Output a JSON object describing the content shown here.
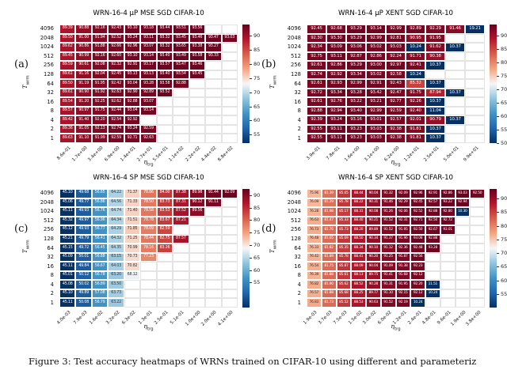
{
  "caption": "Figure 3: Test accuracy heatmaps of WRNs trained on CIFAR-10 using different and parameteriz",
  "shared": {
    "ylabel_base": "T",
    "ylabel_sub": "wrm",
    "xlabel_base": "η",
    "xlabel_sub": "trg",
    "row_labels": [
      "4096",
      "2048",
      "1024",
      "512",
      "256",
      "128",
      "64",
      "32",
      "16",
      "8",
      "4",
      "2",
      "1"
    ],
    "colormap": {
      "low": "#053061",
      "mid": "#f7f7f7",
      "high": "#67001f"
    }
  },
  "chart_data": [
    {
      "type": "heatmap",
      "id": "a",
      "letter": "(a)",
      "title": "WRN-16-4 μP MSE SGD CIFAR-10",
      "y_ticklabels": [
        "4096",
        "2048",
        "1024",
        "512",
        "256",
        "128",
        "64",
        "32",
        "16",
        "8",
        "4",
        "2",
        "1"
      ],
      "x_ticklabels": [
        "8.6e-01",
        "1.7e+00",
        "3.4e+00",
        "6.9e+00",
        "1.4e+01",
        "2.7e+01",
        "5.5e+01",
        "1.1e+02",
        "2.2e+02",
        "4.4e+02",
        "8.8e+02"
      ],
      "vmin": 52,
      "vmax": 94,
      "colorbar_ticks": [
        90,
        85,
        80,
        75,
        70,
        65,
        60,
        55
      ],
      "values": [
        [
          89.39,
          90.88,
          92.16,
          92.43,
          93.1,
          93.18,
          93.44,
          93.51,
          93.56,
          null,
          null
        ],
        [
          89.5,
          91.0,
          91.94,
          92.52,
          93.24,
          93.11,
          93.32,
          93.45,
          93.46,
          93.47,
          93.03
        ],
        [
          89.62,
          90.86,
          91.88,
          92.66,
          92.96,
          93.07,
          93.32,
          93.65,
          93.38,
          93.27,
          null
        ],
        [
          89.45,
          90.99,
          92.16,
          92.6,
          93.1,
          93.14,
          93.4,
          93.49,
          93.58,
          93.33,
          null
        ],
        [
          89.59,
          90.61,
          92.08,
          92.32,
          92.91,
          93.17,
          93.57,
          93.47,
          93.46,
          null,
          null
        ],
        [
          89.61,
          91.16,
          92.04,
          92.45,
          93.13,
          93.13,
          93.4,
          93.54,
          93.45,
          null,
          null
        ],
        [
          89.5,
          91.19,
          91.95,
          92.42,
          93.04,
          93.28,
          93.58,
          92.88,
          null,
          null,
          null
        ],
        [
          89.61,
          90.9,
          91.92,
          92.63,
          92.9,
          92.89,
          93.52,
          null,
          null,
          null,
          null
        ],
        [
          89.54,
          91.2,
          92.25,
          92.62,
          92.88,
          93.07,
          null,
          null,
          null,
          null,
          null
        ],
        [
          89.57,
          90.97,
          91.75,
          92.44,
          93.04,
          93.14,
          null,
          null,
          null,
          null,
          null
        ],
        [
          89.42,
          91.4,
          92.2,
          92.54,
          92.92,
          null,
          null,
          null,
          null,
          null,
          null
        ],
        [
          89.36,
          91.05,
          92.13,
          92.74,
          93.24,
          92.59,
          null,
          null,
          null,
          null,
          null
        ],
        [
          89.63,
          91.1,
          91.99,
          92.59,
          92.71,
          92.63,
          null,
          null,
          null,
          null,
          null
        ]
      ]
    },
    {
      "type": "heatmap",
      "id": "b",
      "letter": "(b)",
      "title": "WRN-16-4 μP XENT SGD CIFAR-10",
      "y_ticklabels": [
        "4096",
        "2048",
        "1024",
        "512",
        "256",
        "128",
        "64",
        "32",
        "16",
        "8",
        "4",
        "2",
        "1"
      ],
      "x_ticklabels": [
        "3.9e-01",
        "7.8e-01",
        "1.6e+00",
        "3.1e+00",
        "6.2e+00",
        "1.2e+01",
        "2.5e+01",
        "5.0e+01",
        "9.9e+01"
      ],
      "vmin": 50,
      "vmax": 94,
      "colorbar_ticks": [
        90,
        85,
        80,
        75,
        70,
        65,
        60,
        55,
        50
      ],
      "values": [
        [
          92.45,
          92.68,
          93.29,
          93.14,
          92.99,
          92.89,
          92.29,
          91.46,
          19.21
        ],
        [
          92.3,
          93.3,
          93.29,
          92.99,
          92.81,
          90.95,
          91.95,
          null,
          null
        ],
        [
          92.34,
          93.09,
          93.06,
          93.02,
          93.03,
          10.24,
          91.62,
          10.37,
          null
        ],
        [
          92.75,
          93.11,
          92.87,
          92.86,
          92.24,
          91.71,
          90.38,
          null,
          null
        ],
        [
          92.61,
          92.86,
          93.29,
          93.0,
          92.97,
          92.41,
          10.37,
          null,
          null
        ],
        [
          92.74,
          92.92,
          93.34,
          93.02,
          92.58,
          10.24,
          null,
          null,
          null
        ],
        [
          92.61,
          92.93,
          92.99,
          92.91,
          92.43,
          85.32,
          10.37,
          null,
          null
        ],
        [
          92.72,
          93.34,
          93.28,
          93.42,
          92.47,
          91.75,
          87.94,
          10.37,
          null
        ],
        [
          92.61,
          92.76,
          93.22,
          93.21,
          92.77,
          92.26,
          10.37,
          null,
          null
        ],
        [
          92.88,
          92.94,
          93.4,
          92.99,
          92.59,
          92.4,
          11.04,
          null,
          null
        ],
        [
          92.39,
          93.24,
          93.16,
          93.01,
          92.57,
          92.01,
          90.79,
          10.37,
          null
        ],
        [
          92.55,
          93.11,
          93.23,
          93.03,
          92.38,
          91.81,
          10.37,
          null,
          null
        ],
        [
          92.55,
          93.11,
          93.23,
          93.03,
          92.38,
          91.81,
          10.37,
          null,
          null
        ]
      ]
    },
    {
      "type": "heatmap",
      "id": "c",
      "letter": "(c)",
      "title": "WRN-16-4 SP MSE SGD CIFAR-10",
      "y_ticklabels": [
        "4096",
        "2048",
        "1024",
        "512",
        "256",
        "128",
        "64",
        "32",
        "16",
        "8",
        "4",
        "2",
        "1"
      ],
      "x_ticklabels": [
        "4.0e-03",
        "7.9e-03",
        "1.6e-02",
        "3.2e-02",
        "6.3e-02",
        "1.3e-01",
        "2.5e-01",
        "5.1e-01",
        "1.0e+00",
        "2.0e+00",
        "4.1e+00"
      ],
      "vmin": 45,
      "vmax": 92.5,
      "colorbar_ticks": [
        90,
        85,
        80,
        75,
        70,
        65,
        60,
        55
      ],
      "values": [
        [
          45.1,
          49.68,
          56.65,
          64.22,
          71.37,
          78.86,
          84.0,
          87.38,
          89.98,
          91.44,
          92.09
        ],
        [
          45.06,
          49.77,
          56.86,
          64.56,
          71.33,
          78.5,
          83.73,
          87.31,
          90.12,
          91.11,
          null
        ],
        [
          45.11,
          49.93,
          56.76,
          64.74,
          71.4,
          78.58,
          83.53,
          87.52,
          89.56,
          null,
          null
        ],
        [
          45.32,
          49.97,
          56.96,
          64.34,
          71.51,
          78.78,
          83.67,
          87.21,
          null,
          null,
          null
        ],
        [
          45.12,
          49.93,
          56.77,
          64.29,
          71.85,
          78.09,
          82.59,
          null,
          null,
          null,
          null
        ],
        [
          45.21,
          49.79,
          56.41,
          64.32,
          71.25,
          78.44,
          82.75,
          87.57,
          null,
          null,
          null
        ],
        [
          45.15,
          49.72,
          56.45,
          64.35,
          70.99,
          78.16,
          83.26,
          null,
          null,
          null,
          null
        ],
        [
          45.09,
          50.01,
          56.88,
          63.15,
          70.73,
          77.23,
          null,
          null,
          null,
          null,
          null
        ],
        [
          45.11,
          49.84,
          56.67,
          64.03,
          70.82,
          null,
          null,
          null,
          null,
          null,
          null
        ],
        [
          45.01,
          50.12,
          56.78,
          63.2,
          68.12,
          null,
          null,
          null,
          null,
          null,
          null
        ],
        [
          45.08,
          50.02,
          56.89,
          63.5,
          null,
          null,
          null,
          null,
          null,
          null,
          null
        ],
        [
          45.1,
          49.89,
          57.08,
          63.73,
          null,
          null,
          null,
          null,
          null,
          null,
          null
        ],
        [
          45.11,
          50.08,
          56.79,
          63.22,
          null,
          null,
          null,
          null,
          null,
          null,
          null
        ]
      ]
    },
    {
      "type": "heatmap",
      "id": "d",
      "letter": "(d)",
      "title": "WRN-16-4 SP XENT SGD CIFAR-10",
      "y_ticklabels": [
        "4096",
        "2048",
        "1024",
        "512",
        "256",
        "128",
        "64",
        "32",
        "16",
        "8",
        "4",
        "2",
        "1"
      ],
      "x_ticklabels": [
        "1.9e-03",
        "3.7e-03",
        "7.5e-03",
        "1.5e-02",
        "3.0e-02",
        "6.0e-02",
        "1.2e-01",
        "2.4e-01",
        "4.8e-01",
        "9.6e-01",
        "1.9e+00",
        "3.8e+00"
      ],
      "vmin": 50,
      "vmax": 93.5,
      "colorbar_ticks": [
        90,
        85,
        80,
        75,
        70,
        65,
        60,
        55
      ],
      "values": [
        [
          75.96,
          81.39,
          85.65,
          88.44,
          90.04,
          91.32,
          92.09,
          92.96,
          92.91,
          92.86,
          93.03,
          92.5
        ],
        [
          76.09,
          81.29,
          85.78,
          88.22,
          90.31,
          91.46,
          92.29,
          92.45,
          92.57,
          93.22,
          92.94,
          null
        ],
        [
          76.28,
          81.98,
          85.17,
          88.31,
          90.08,
          91.26,
          92.06,
          92.52,
          92.88,
          92.8,
          10.3,
          null
        ],
        [
          76.63,
          81.47,
          85.33,
          88.4,
          90.21,
          91.52,
          92.31,
          92.71,
          92.5,
          92.72,
          null,
          null
        ],
        [
          76.73,
          81.76,
          85.73,
          88.2,
          89.89,
          91.52,
          91.95,
          92.5,
          92.67,
          93.01,
          null,
          null
        ],
        [
          76.48,
          81.65,
          85.69,
          88.5,
          90.34,
          91.37,
          91.96,
          93.08,
          92.88,
          null,
          null,
          null
        ],
        [
          76.33,
          81.82,
          85.35,
          88.34,
          90.1,
          91.12,
          92.36,
          92.48,
          93.28,
          null,
          null,
          null
        ],
        [
          76.42,
          81.89,
          85.78,
          88.41,
          90.2,
          91.25,
          91.87,
          92.56,
          null,
          null,
          null,
          null
        ],
        [
          76.54,
          81.75,
          85.87,
          88.09,
          90.04,
          91.09,
          91.38,
          92.23,
          null,
          null,
          null,
          null
        ],
        [
          76.39,
          81.88,
          85.61,
          88.13,
          89.75,
          91.41,
          91.68,
          92.12,
          null,
          null,
          null,
          null
        ],
        [
          76.82,
          81.9,
          85.62,
          88.52,
          90.28,
          91.31,
          91.95,
          92.2,
          11.51,
          null,
          null,
          null
        ],
        [
          76.57,
          81.88,
          85.68,
          88.25,
          89.77,
          91.1,
          92.15,
          92.12,
          10.24,
          null,
          null,
          null
        ],
        [
          76.83,
          81.73,
          85.52,
          88.53,
          90.63,
          91.52,
          92.19,
          10.24,
          null,
          null,
          null,
          null
        ]
      ]
    }
  ]
}
